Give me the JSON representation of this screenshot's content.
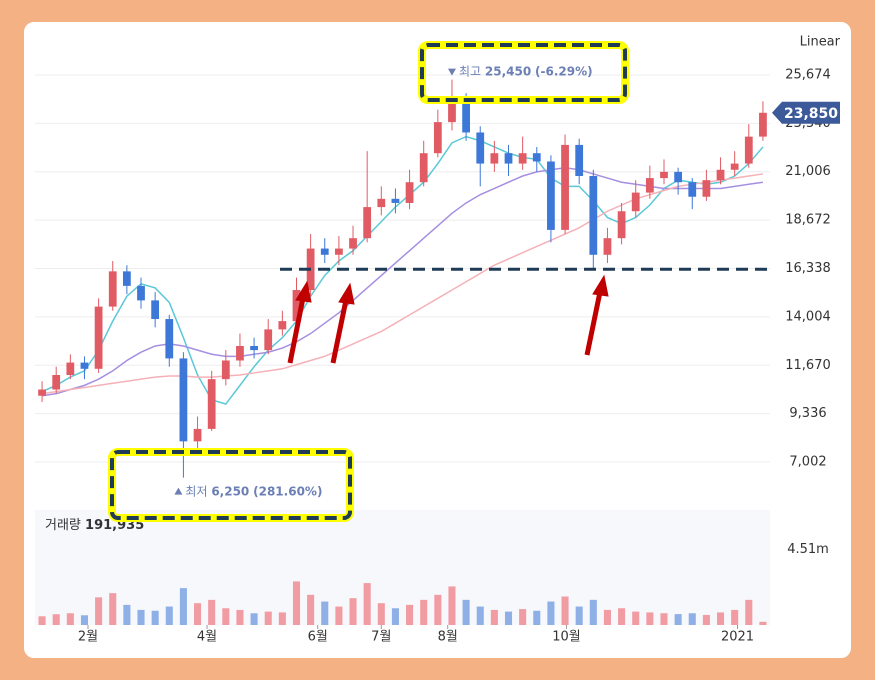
{
  "chart_data": [
    {
      "type": "candlestick",
      "scale_label": "Linear",
      "up_color": "#e15b64",
      "down_color": "#3d78d8",
      "open": [
        10200,
        10500,
        11200,
        11800,
        11500,
        14500,
        16200,
        15500,
        14800,
        13900,
        12000,
        8000,
        8600,
        11000,
        11900,
        12600,
        12400,
        13400,
        13800,
        15300,
        17300,
        17000,
        17300,
        17800,
        19300,
        19700,
        19500,
        20500,
        21900,
        23400,
        24500,
        22900,
        21400,
        21900,
        21400,
        21900,
        21500,
        18200,
        22300,
        20800,
        17000,
        17800,
        19100,
        20000,
        20700,
        21000,
        20500,
        19800,
        20600,
        21100,
        21400,
        22700
      ],
      "high": [
        10900,
        11600,
        12200,
        12100,
        14900,
        16700,
        16500,
        15900,
        15200,
        14100,
        12300,
        9200,
        11400,
        12400,
        13200,
        13000,
        13900,
        14300,
        15900,
        18000,
        17800,
        17900,
        18400,
        22000,
        20300,
        20200,
        21100,
        22500,
        24000,
        25450,
        24800,
        23200,
        22500,
        22300,
        22700,
        22200,
        21800,
        22800,
        22600,
        21100,
        18300,
        19500,
        20600,
        21300,
        21600,
        21200,
        20700,
        21100,
        21700,
        22000,
        23300,
        24400
      ],
      "low": [
        9900,
        10300,
        11000,
        11000,
        11300,
        14300,
        15100,
        14400,
        13500,
        11600,
        6250,
        7600,
        8500,
        10700,
        11600,
        12000,
        12200,
        13100,
        13600,
        15000,
        16600,
        16500,
        17000,
        17600,
        18900,
        19000,
        19200,
        20300,
        21700,
        23000,
        22500,
        20300,
        21000,
        20800,
        21100,
        21000,
        17600,
        18000,
        20400,
        16300,
        16600,
        17500,
        18800,
        19700,
        20400,
        19900,
        19200,
        19600,
        20400,
        20800,
        21200,
        22500
      ],
      "close": [
        10500,
        11200,
        11800,
        11500,
        14500,
        16200,
        15500,
        14800,
        13900,
        12000,
        8000,
        8600,
        11000,
        11900,
        12600,
        12400,
        13400,
        13800,
        15300,
        17300,
        17000,
        17300,
        17800,
        19300,
        19700,
        19500,
        20500,
        21900,
        23400,
        24500,
        22900,
        21400,
        21900,
        21400,
        21900,
        21500,
        18200,
        22300,
        20800,
        17000,
        17800,
        19100,
        20000,
        20700,
        21000,
        20500,
        19800,
        20600,
        21100,
        21400,
        22700,
        23850
      ],
      "close_labels": [
        null,
        null,
        null,
        null,
        null,
        null,
        null,
        null,
        null,
        null,
        null,
        null,
        null,
        null,
        null,
        null,
        null,
        null,
        null,
        null,
        null,
        null,
        null,
        null,
        null,
        null,
        null,
        null,
        null,
        null,
        null,
        null,
        null,
        null,
        null,
        null,
        null,
        null,
        null,
        null,
        null,
        null,
        null,
        null,
        null,
        null,
        null,
        null,
        null,
        null,
        null,
        "23,850"
      ],
      "series": [
        {
          "color": "#5bc8d8",
          "values": [
            10400,
            10700,
            11100,
            11400,
            12400,
            13800,
            15000,
            15600,
            15400,
            14700,
            13000,
            11200,
            10000,
            9800,
            10700,
            11600,
            12400,
            13000,
            13800,
            15000,
            16000,
            16700,
            17200,
            17900,
            18600,
            19300,
            19900,
            20500,
            21400,
            22400,
            22700,
            22500,
            22200,
            21900,
            21700,
            21600,
            20700,
            20300,
            20300,
            19600,
            18800,
            18500,
            18800,
            19400,
            20200,
            20600,
            20500,
            20400,
            20500,
            20800,
            21400,
            22200
          ]
        },
        {
          "color": "#a58fe0",
          "values": [
            10200,
            10300,
            10500,
            10700,
            11000,
            11400,
            11900,
            12300,
            12600,
            12700,
            12600,
            12400,
            12200,
            12100,
            12100,
            12200,
            12300,
            12500,
            12800,
            13200,
            13700,
            14200,
            14800,
            15400,
            16000,
            16600,
            17200,
            17800,
            18400,
            19000,
            19500,
            19900,
            20200,
            20500,
            20800,
            21000,
            21100,
            21200,
            21100,
            20900,
            20700,
            20500,
            20400,
            20300,
            20200,
            20200,
            20200,
            20200,
            20200,
            20300,
            20400,
            20500
          ]
        },
        {
          "color": "#f5b1b8",
          "values": [
            10300,
            10400,
            10500,
            10600,
            10700,
            10800,
            10900,
            11000,
            11100,
            11150,
            11150,
            11100,
            11100,
            11150,
            11200,
            11300,
            11400,
            11500,
            11700,
            11900,
            12100,
            12400,
            12700,
            13000,
            13300,
            13700,
            14100,
            14500,
            14900,
            15300,
            15700,
            16100,
            16500,
            16800,
            17100,
            17400,
            17700,
            18000,
            18300,
            18700,
            19100,
            19400,
            19700,
            19900,
            20100,
            20300,
            20400,
            20500,
            20600,
            20700,
            20800,
            20900
          ]
        }
      ],
      "xlim": [
        -0.5,
        51.5
      ],
      "xticks": [
        {
          "value": 3.25,
          "label": "2월"
        },
        {
          "value": 11.67,
          "label": "4월"
        },
        {
          "value": 19.5,
          "label": "6월"
        },
        {
          "value": 24,
          "label": "7월"
        },
        {
          "value": 28.7,
          "label": "8월"
        },
        {
          "value": 37.1,
          "label": "10월"
        },
        {
          "value": 49.2,
          "label": "2021"
        }
      ],
      "ylim": [
        4688,
        27602
      ],
      "yticks": [
        {
          "value": 7002,
          "label": "7,002"
        },
        {
          "value": 9336,
          "label": "9,336"
        },
        {
          "value": 11670,
          "label": "11,670"
        },
        {
          "value": 14004,
          "label": "14,004"
        },
        {
          "value": 16338,
          "label": "16,338"
        },
        {
          "value": 18672,
          "label": "18,672"
        },
        {
          "value": 21006,
          "label": "21,006"
        },
        {
          "value": 23340,
          "label": "23,340"
        },
        {
          "value": 25674,
          "label": "25,674"
        }
      ],
      "grid": true,
      "support_line": 16300,
      "annotations": [
        {
          "text": "최고",
          "x": 29,
          "value": 25450,
          "label": "25,450",
          "change": -6.29,
          "change_label": "(-6.29%)",
          "direction": "down"
        },
        {
          "text": "최저",
          "x": 10,
          "value": 6250,
          "label": "6,250",
          "change": 281.6,
          "change_label": "(281.60%)",
          "direction": "up"
        }
      ]
    },
    {
      "type": "bar",
      "title": "거래량",
      "values": [
        520000,
        640000,
        700000,
        580000,
        1650000,
        1900000,
        1200000,
        900000,
        850000,
        1100000,
        2200000,
        1300000,
        1500000,
        1000000,
        900000,
        700000,
        800000,
        750000,
        2600000,
        1800000,
        1400000,
        1100000,
        1600000,
        2500000,
        1300000,
        1000000,
        1200000,
        1500000,
        1800000,
        2300000,
        1500000,
        1100000,
        900000,
        800000,
        950000,
        850000,
        1400000,
        1700000,
        1100000,
        1500000,
        900000,
        1000000,
        800000,
        750000,
        700000,
        650000,
        700000,
        600000,
        750000,
        900000,
        1500000,
        191935
      ],
      "value_labels": [
        null,
        null,
        null,
        null,
        null,
        null,
        null,
        null,
        null,
        null,
        null,
        null,
        null,
        null,
        null,
        null,
        null,
        null,
        null,
        null,
        null,
        null,
        null,
        null,
        null,
        null,
        null,
        null,
        null,
        null,
        null,
        null,
        null,
        null,
        null,
        null,
        null,
        null,
        null,
        null,
        null,
        null,
        null,
        null,
        null,
        null,
        null,
        null,
        null,
        null,
        null,
        "191,935"
      ],
      "xlim": [
        -0.5,
        51.5
      ],
      "ylim": [
        0,
        6740000
      ],
      "yticks": [
        {
          "value": 4510000,
          "label": "4.51m"
        }
      ]
    }
  ]
}
